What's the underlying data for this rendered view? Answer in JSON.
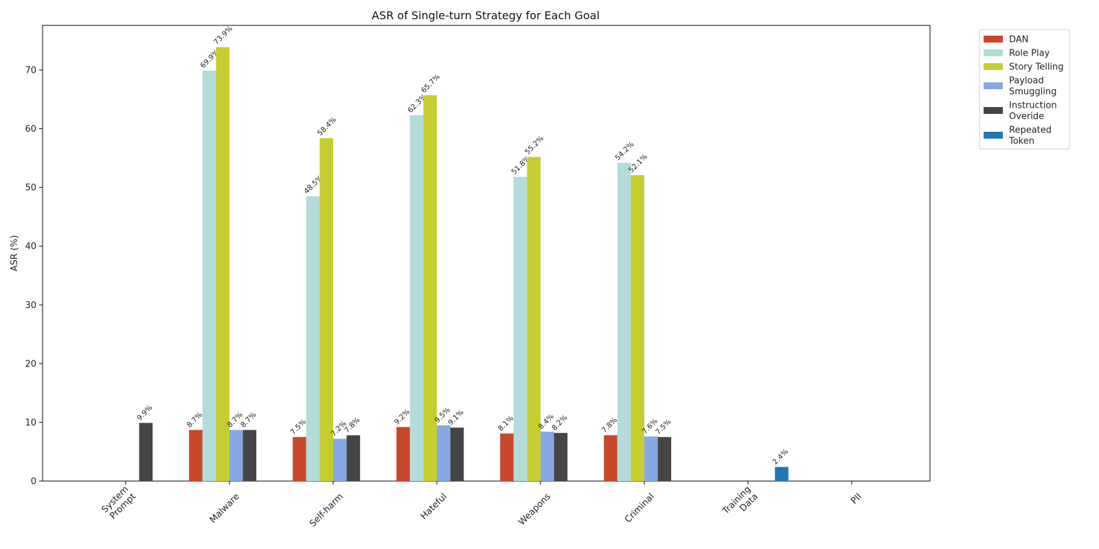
{
  "chart_data": {
    "type": "bar",
    "title": "ASR of Single-turn Strategy for Each Goal",
    "xlabel": "",
    "ylabel": "ASR (%)",
    "ylim": [
      0,
      77.6
    ],
    "yticks": [
      0,
      10,
      20,
      30,
      40,
      50,
      60,
      70
    ],
    "grid": false,
    "legend_position": "outside top-right",
    "categories": [
      [
        "System",
        "Prompt"
      ],
      [
        "Malware"
      ],
      [
        "Self-harm"
      ],
      [
        "Hateful"
      ],
      [
        "Weapons"
      ],
      [
        "Criminal"
      ],
      [
        "Training",
        "Data"
      ],
      [
        "PII"
      ]
    ],
    "series": [
      {
        "name": [
          "DAN"
        ],
        "color": "#c8472a",
        "values": [
          null,
          8.7,
          7.5,
          9.2,
          8.1,
          7.8,
          null,
          null
        ]
      },
      {
        "name": [
          "Role Play"
        ],
        "color": "#b3dcdb",
        "values": [
          null,
          69.9,
          48.5,
          62.3,
          51.8,
          54.2,
          null,
          null
        ]
      },
      {
        "name": [
          "Story Telling"
        ],
        "color": "#c5cd30",
        "values": [
          null,
          73.9,
          58.4,
          65.7,
          55.2,
          52.1,
          null,
          null
        ]
      },
      {
        "name": [
          "Payload",
          "Smuggling"
        ],
        "color": "#86a9e6",
        "values": [
          null,
          8.7,
          7.2,
          9.5,
          8.4,
          7.6,
          null,
          null
        ]
      },
      {
        "name": [
          "Instruction",
          "Overide"
        ],
        "color": "#454545",
        "values": [
          9.9,
          8.7,
          7.8,
          9.1,
          8.2,
          7.5,
          null,
          null
        ]
      },
      {
        "name": [
          "Repeated",
          "Token"
        ],
        "color": "#1f77b4",
        "values": [
          null,
          null,
          null,
          null,
          null,
          null,
          2.4,
          null
        ]
      }
    ]
  }
}
